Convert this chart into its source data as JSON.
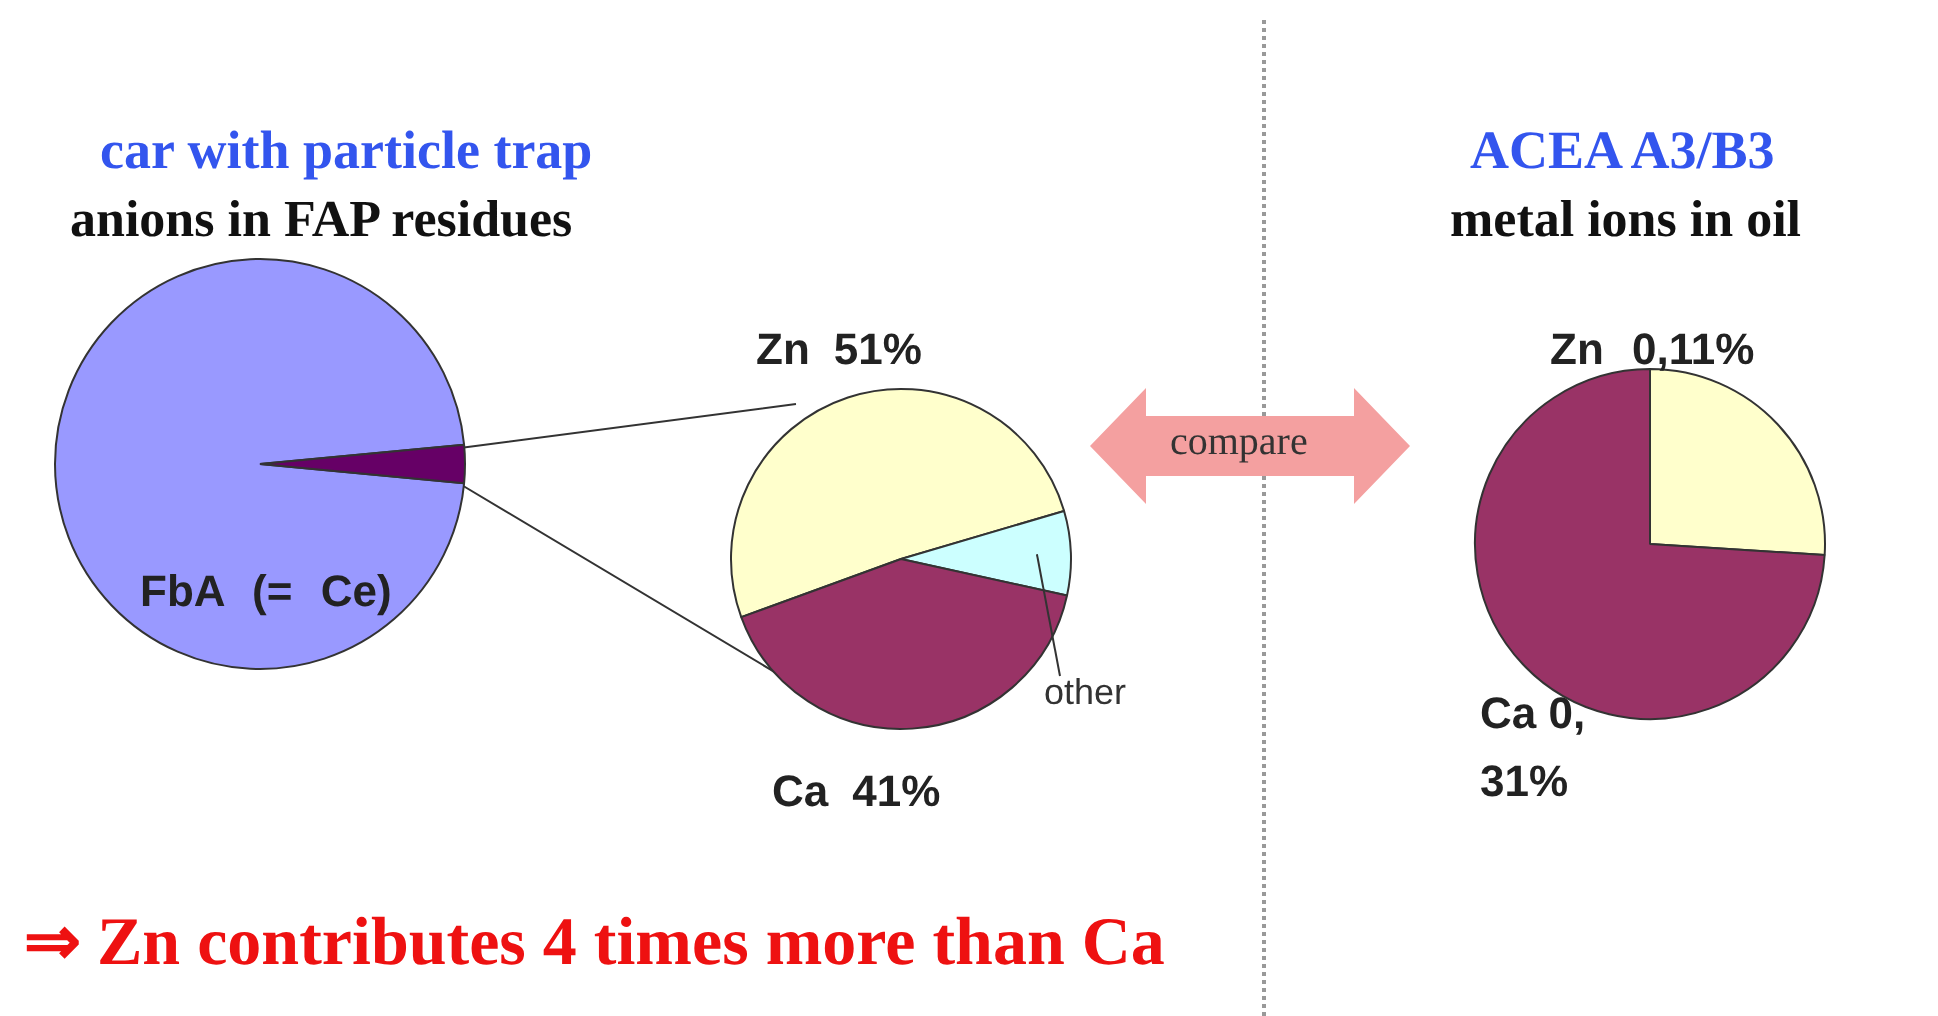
{
  "chart_data": [
    {
      "type": "pie",
      "title": "car with particle trap",
      "subtitle": "anions in FAP residues",
      "categories": [
        "FbA (= Ce)",
        null
      ],
      "values": [
        97,
        3
      ],
      "colors": [
        "#9999ff",
        "#660066"
      ],
      "legend": false,
      "annotations": [
        "⇒ Zn contributes 4 times more than Ca"
      ]
    },
    {
      "type": "pie",
      "categories": [
        "Zn",
        "other",
        "Ca"
      ],
      "values": [
        51,
        8,
        41
      ],
      "value_labels": [
        "51%",
        null,
        "41%"
      ],
      "colors": [
        "#ffffcc",
        "#ccffff",
        "#993366"
      ],
      "legend": false,
      "annotations": [
        "compare"
      ]
    },
    {
      "type": "pie",
      "title": "ACEA A3/B3",
      "subtitle": "metal ions in oil",
      "categories": [
        "Zn 0,11%",
        "Ca 0, 31%"
      ],
      "values": [
        26,
        74
      ],
      "colors": [
        "#ffffcc",
        "#993366"
      ],
      "legend": false
    }
  ]
}
